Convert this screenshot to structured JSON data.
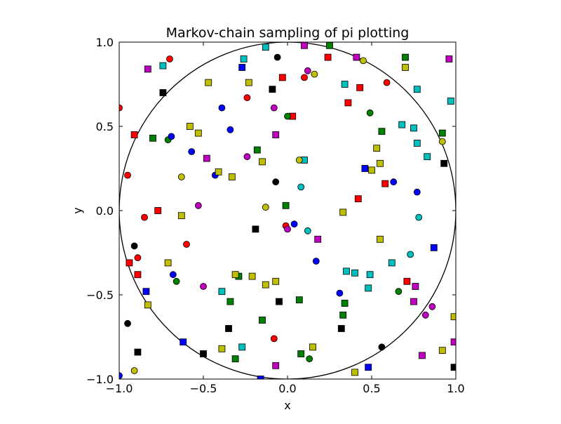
{
  "chart_data": {
    "type": "scatter",
    "title": "Markov-chain sampling of pi plotting",
    "xlabel": "x",
    "ylabel": "y",
    "xlim": [
      -1.0,
      1.0
    ],
    "ylim": [
      -1.0,
      1.0
    ],
    "x_ticks": [
      -1.0,
      -0.5,
      0.0,
      0.5,
      1.0
    ],
    "y_ticks": [
      -1.0,
      -0.5,
      0.0,
      0.5,
      1.0
    ],
    "x_tick_labels": [
      "−1.0",
      "−0.5",
      "0.0",
      "0.5",
      "1.0"
    ],
    "y_tick_labels": [
      "−1.0",
      "−0.5",
      "0.0",
      "0.5",
      "1.0"
    ],
    "grid": false,
    "reference_shape": "unit circle",
    "colors": {
      "r": "#ff0000",
      "g": "#008000",
      "b": "#0000ff",
      "c": "#00bfbf",
      "m": "#bf00bf",
      "y": "#bfbf00",
      "k": "#000000"
    },
    "series": [
      {
        "color": "r",
        "points": [
          {
            "x": -1.0,
            "y": 0.61,
            "m": "o"
          },
          {
            "x": -0.7,
            "y": 0.9,
            "m": "o"
          },
          {
            "x": -0.91,
            "y": 0.45,
            "m": "s"
          },
          {
            "x": -0.95,
            "y": 0.21,
            "m": "o"
          },
          {
            "x": -0.85,
            "y": -0.04,
            "m": "o"
          },
          {
            "x": -0.77,
            "y": 0.0,
            "m": "s"
          },
          {
            "x": -0.89,
            "y": -0.28,
            "m": "o"
          },
          {
            "x": -0.94,
            "y": -0.31,
            "m": "s"
          },
          {
            "x": -0.89,
            "y": -0.38,
            "m": "s"
          },
          {
            "x": -0.6,
            "y": -0.2,
            "m": "o"
          },
          {
            "x": -0.24,
            "y": 0.67,
            "m": "o"
          },
          {
            "x": -0.03,
            "y": 0.79,
            "m": "s"
          },
          {
            "x": 0.1,
            "y": 0.79,
            "m": "o"
          },
          {
            "x": 0.03,
            "y": 0.56,
            "m": "s"
          },
          {
            "x": 0.24,
            "y": 0.91,
            "m": "s"
          },
          {
            "x": 0.36,
            "y": 0.64,
            "m": "s"
          },
          {
            "x": 0.43,
            "y": 0.73,
            "m": "s"
          },
          {
            "x": 0.59,
            "y": 0.76,
            "m": "o"
          },
          {
            "x": 0.42,
            "y": 0.07,
            "m": "s"
          },
          {
            "x": 0.58,
            "y": 0.16,
            "m": "s"
          },
          {
            "x": -0.01,
            "y": -0.09,
            "m": "o"
          },
          {
            "x": -0.08,
            "y": -0.76,
            "m": "o"
          },
          {
            "x": 0.71,
            "y": -0.42,
            "m": "s"
          }
        ]
      },
      {
        "color": "g",
        "points": [
          {
            "x": -0.8,
            "y": 0.43,
            "m": "s"
          },
          {
            "x": -0.71,
            "y": 0.42,
            "m": "o"
          },
          {
            "x": -0.18,
            "y": 0.36,
            "m": "s"
          },
          {
            "x": 0.0,
            "y": 0.56,
            "m": "o"
          },
          {
            "x": 0.25,
            "y": 0.98,
            "m": "s"
          },
          {
            "x": 0.49,
            "y": 0.58,
            "m": "o"
          },
          {
            "x": 0.56,
            "y": 0.47,
            "m": "s"
          },
          {
            "x": 0.7,
            "y": 0.91,
            "m": "s"
          },
          {
            "x": 0.92,
            "y": 0.46,
            "m": "s"
          },
          {
            "x": -0.01,
            "y": 0.03,
            "m": "s"
          },
          {
            "x": -0.66,
            "y": -0.42,
            "m": "o"
          },
          {
            "x": -0.29,
            "y": -0.39,
            "m": "s"
          },
          {
            "x": -0.34,
            "y": -0.54,
            "m": "s"
          },
          {
            "x": -0.15,
            "y": -0.65,
            "m": "s"
          },
          {
            "x": -0.31,
            "y": -0.88,
            "m": "s"
          },
          {
            "x": 0.07,
            "y": -0.53,
            "m": "s"
          },
          {
            "x": 0.08,
            "y": -0.85,
            "m": "s"
          },
          {
            "x": 0.13,
            "y": -0.88,
            "m": "o"
          },
          {
            "x": 0.34,
            "y": -0.55,
            "m": "s"
          },
          {
            "x": 0.33,
            "y": -0.62,
            "m": "s"
          },
          {
            "x": 0.66,
            "y": -0.48,
            "m": "o"
          }
        ]
      },
      {
        "color": "b",
        "points": [
          {
            "x": -0.27,
            "y": 0.85,
            "m": "s"
          },
          {
            "x": -0.39,
            "y": 0.61,
            "m": "o"
          },
          {
            "x": -0.34,
            "y": 0.48,
            "m": "o"
          },
          {
            "x": -0.69,
            "y": 0.44,
            "m": "o"
          },
          {
            "x": -0.57,
            "y": 0.35,
            "m": "o"
          },
          {
            "x": -0.43,
            "y": 0.21,
            "m": "o"
          },
          {
            "x": 0.46,
            "y": 0.25,
            "m": "s"
          },
          {
            "x": 0.63,
            "y": 0.17,
            "m": "o"
          },
          {
            "x": 0.04,
            "y": -0.08,
            "m": "o"
          },
          {
            "x": -0.68,
            "y": -0.38,
            "m": "o"
          },
          {
            "x": -0.84,
            "y": -0.48,
            "m": "s"
          },
          {
            "x": 0.17,
            "y": -0.3,
            "m": "o"
          },
          {
            "x": 0.31,
            "y": -0.49,
            "m": "o"
          },
          {
            "x": 0.77,
            "y": 0.11,
            "m": "o"
          },
          {
            "x": 0.87,
            "y": -0.22,
            "m": "s"
          },
          {
            "x": -0.62,
            "y": -0.78,
            "m": "s"
          },
          {
            "x": -1.0,
            "y": -0.98,
            "m": "o"
          },
          {
            "x": -0.16,
            "y": -1.0,
            "m": "s"
          },
          {
            "x": 0.48,
            "y": -0.93,
            "m": "s"
          }
        ]
      },
      {
        "color": "c",
        "points": [
          {
            "x": -0.74,
            "y": 0.86,
            "m": "s"
          },
          {
            "x": -0.26,
            "y": 0.9,
            "m": "s"
          },
          {
            "x": -0.13,
            "y": 0.97,
            "m": "s"
          },
          {
            "x": 0.34,
            "y": 0.75,
            "m": "s"
          },
          {
            "x": 0.77,
            "y": 0.72,
            "m": "s"
          },
          {
            "x": 0.97,
            "y": 0.65,
            "m": "s"
          },
          {
            "x": 0.68,
            "y": 0.51,
            "m": "s"
          },
          {
            "x": 0.75,
            "y": 0.49,
            "m": "s"
          },
          {
            "x": 0.77,
            "y": 0.4,
            "m": "s"
          },
          {
            "x": 0.83,
            "y": 0.32,
            "m": "s"
          },
          {
            "x": 0.1,
            "y": 0.3,
            "m": "s"
          },
          {
            "x": 0.08,
            "y": 0.14,
            "m": "o"
          },
          {
            "x": 0.12,
            "y": -0.12,
            "m": "o"
          },
          {
            "x": 0.78,
            "y": -0.04,
            "m": "o"
          },
          {
            "x": 0.35,
            "y": -0.36,
            "m": "s"
          },
          {
            "x": 0.4,
            "y": -0.37,
            "m": "s"
          },
          {
            "x": 0.49,
            "y": -0.38,
            "m": "s"
          },
          {
            "x": 0.48,
            "y": -0.46,
            "m": "s"
          },
          {
            "x": 0.62,
            "y": -0.31,
            "m": "s"
          },
          {
            "x": 0.73,
            "y": -0.26,
            "m": "o"
          },
          {
            "x": -0.39,
            "y": -0.48,
            "m": "s"
          },
          {
            "x": -0.27,
            "y": -0.81,
            "m": "s"
          }
        ]
      },
      {
        "color": "m",
        "points": [
          {
            "x": -0.83,
            "y": 0.84,
            "m": "s"
          },
          {
            "x": 0.1,
            "y": 0.98,
            "m": "s"
          },
          {
            "x": 0.12,
            "y": 0.83,
            "m": "o"
          },
          {
            "x": 0.41,
            "y": 0.91,
            "m": "s"
          },
          {
            "x": 0.96,
            "y": 0.9,
            "m": "s"
          },
          {
            "x": -0.08,
            "y": 0.61,
            "m": "o"
          },
          {
            "x": -0.07,
            "y": 0.45,
            "m": "s"
          },
          {
            "x": -0.48,
            "y": 0.31,
            "m": "s"
          },
          {
            "x": -0.24,
            "y": 0.32,
            "m": "o"
          },
          {
            "x": -0.53,
            "y": 0.03,
            "m": "o"
          },
          {
            "x": 0.0,
            "y": -0.11,
            "m": "o"
          },
          {
            "x": 0.18,
            "y": -0.17,
            "m": "s"
          },
          {
            "x": -0.5,
            "y": -0.45,
            "m": "o"
          },
          {
            "x": 0.76,
            "y": -0.45,
            "m": "s"
          },
          {
            "x": 0.75,
            "y": -0.54,
            "m": "s"
          },
          {
            "x": 0.86,
            "y": -0.57,
            "m": "o"
          },
          {
            "x": 0.82,
            "y": -0.62,
            "m": "o"
          },
          {
            "x": 0.8,
            "y": -0.86,
            "m": "s"
          },
          {
            "x": 0.99,
            "y": -0.78,
            "m": "s"
          },
          {
            "x": -0.07,
            "y": -0.92,
            "m": "s"
          }
        ]
      },
      {
        "color": "y",
        "points": [
          {
            "x": -0.47,
            "y": 0.76,
            "m": "s"
          },
          {
            "x": -0.23,
            "y": 0.76,
            "m": "s"
          },
          {
            "x": 0.16,
            "y": 0.81,
            "m": "o"
          },
          {
            "x": 0.45,
            "y": 0.89,
            "m": "o"
          },
          {
            "x": 0.7,
            "y": 0.85,
            "m": "s"
          },
          {
            "x": -0.58,
            "y": 0.5,
            "m": "s"
          },
          {
            "x": -0.53,
            "y": 0.46,
            "m": "s"
          },
          {
            "x": -0.15,
            "y": 0.29,
            "m": "s"
          },
          {
            "x": -0.41,
            "y": 0.23,
            "m": "s"
          },
          {
            "x": -0.33,
            "y": 0.2,
            "m": "s"
          },
          {
            "x": -0.63,
            "y": 0.2,
            "m": "o"
          },
          {
            "x": 0.07,
            "y": 0.3,
            "m": "o"
          },
          {
            "x": 0.53,
            "y": 0.37,
            "m": "s"
          },
          {
            "x": 0.55,
            "y": 0.28,
            "m": "s"
          },
          {
            "x": 0.5,
            "y": 0.24,
            "m": "s"
          },
          {
            "x": 0.92,
            "y": 0.41,
            "m": "o"
          },
          {
            "x": -0.13,
            "y": 0.02,
            "m": "o"
          },
          {
            "x": 0.33,
            "y": -0.01,
            "m": "s"
          },
          {
            "x": -0.63,
            "y": -0.03,
            "m": "s"
          },
          {
            "x": 0.55,
            "y": -0.17,
            "m": "s"
          },
          {
            "x": -0.71,
            "y": -0.31,
            "m": "s"
          },
          {
            "x": -0.31,
            "y": -0.38,
            "m": "s"
          },
          {
            "x": -0.21,
            "y": -0.39,
            "m": "s"
          },
          {
            "x": -0.13,
            "y": -0.44,
            "m": "s"
          },
          {
            "x": -0.07,
            "y": -0.42,
            "m": "s"
          },
          {
            "x": -0.83,
            "y": -0.56,
            "m": "s"
          },
          {
            "x": -0.39,
            "y": -0.82,
            "m": "s"
          },
          {
            "x": 0.15,
            "y": -0.81,
            "m": "s"
          },
          {
            "x": 0.4,
            "y": -0.96,
            "m": "s"
          },
          {
            "x": -0.91,
            "y": -0.95,
            "m": "o"
          },
          {
            "x": 0.92,
            "y": -0.83,
            "m": "s"
          },
          {
            "x": 0.99,
            "y": -0.63,
            "m": "s"
          }
        ]
      },
      {
        "color": "k",
        "points": [
          {
            "x": -0.74,
            "y": 0.7,
            "m": "s"
          },
          {
            "x": -0.06,
            "y": 0.91,
            "m": "o"
          },
          {
            "x": -0.09,
            "y": 0.72,
            "m": "s"
          },
          {
            "x": 0.93,
            "y": 0.28,
            "m": "s"
          },
          {
            "x": -0.07,
            "y": 0.17,
            "m": "o"
          },
          {
            "x": -0.19,
            "y": -0.11,
            "m": "s"
          },
          {
            "x": -0.91,
            "y": -0.21,
            "m": "o"
          },
          {
            "x": -0.05,
            "y": -0.54,
            "m": "s"
          },
          {
            "x": -0.95,
            "y": -0.67,
            "m": "o"
          },
          {
            "x": -0.35,
            "y": -0.7,
            "m": "s"
          },
          {
            "x": 0.32,
            "y": -0.7,
            "m": "s"
          },
          {
            "x": -0.89,
            "y": -0.84,
            "m": "s"
          },
          {
            "x": -0.5,
            "y": -0.85,
            "m": "s"
          },
          {
            "x": 0.56,
            "y": -0.81,
            "m": "o"
          },
          {
            "x": 0.99,
            "y": -0.93,
            "m": "s"
          }
        ]
      }
    ]
  }
}
